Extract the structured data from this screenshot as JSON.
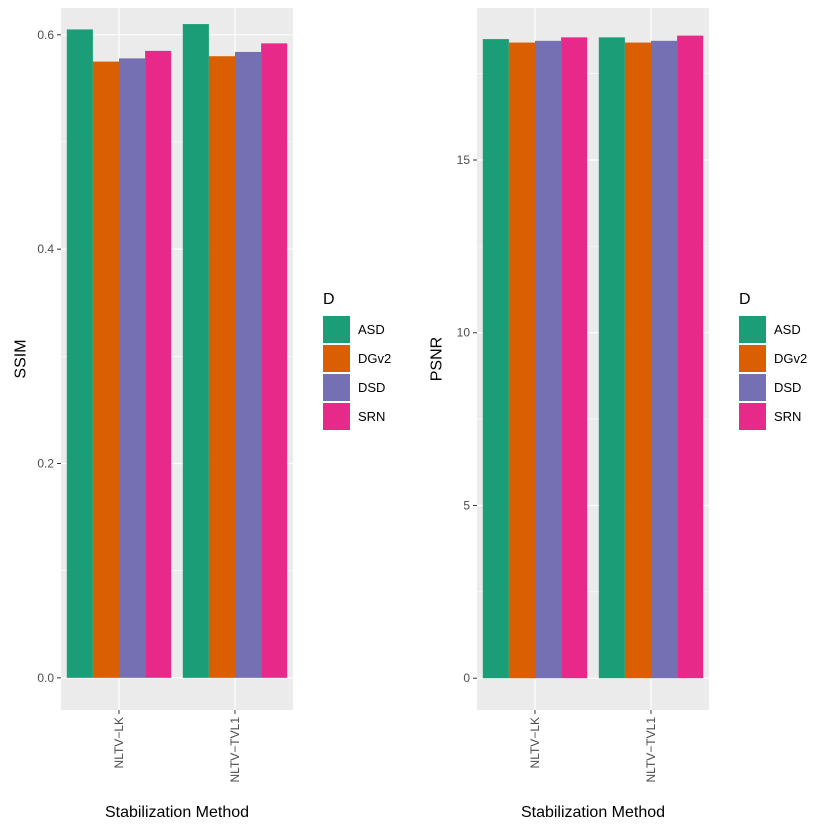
{
  "chart_data": [
    {
      "type": "bar",
      "xlabel": "Stabilization Method",
      "ylabel": "SSIM",
      "categories": [
        "NLTV−LK",
        "NLTV−TVL1"
      ],
      "ylim": [
        -0.03,
        0.625
      ],
      "yticks": [
        0.0,
        0.2,
        0.4,
        0.6
      ],
      "ytick_labels": [
        "0.0",
        "0.2",
        "0.4",
        "0.6"
      ],
      "series": [
        {
          "name": "ASD",
          "values": [
            0.605,
            0.61
          ]
        },
        {
          "name": "DGv2",
          "values": [
            0.575,
            0.58
          ]
        },
        {
          "name": "DSD",
          "values": [
            0.578,
            0.584
          ]
        },
        {
          "name": "SRN",
          "values": [
            0.585,
            0.592
          ]
        }
      ],
      "legend": {
        "title": "D",
        "position": "right"
      },
      "grid": true
    },
    {
      "type": "bar",
      "xlabel": "Stabilization Method",
      "ylabel": "PSNR",
      "categories": [
        "NLTV−LK",
        "NLTV−TVL1"
      ],
      "ylim": [
        -0.92,
        19.4
      ],
      "yticks": [
        0,
        5,
        10,
        15
      ],
      "ytick_labels": [
        "0",
        "5",
        "10",
        "15"
      ],
      "series": [
        {
          "name": "ASD",
          "values": [
            18.5,
            18.55
          ]
        },
        {
          "name": "DGv2",
          "values": [
            18.4,
            18.4
          ]
        },
        {
          "name": "DSD",
          "values": [
            18.45,
            18.45
          ]
        },
        {
          "name": "SRN",
          "values": [
            18.55,
            18.6
          ]
        }
      ],
      "legend": {
        "title": "D",
        "position": "right"
      },
      "grid": true
    }
  ],
  "colors": {
    "ASD": "#1b9e77",
    "DGv2": "#d95f02",
    "DSD": "#7570b3",
    "SRN": "#e7298a",
    "panel_bg": "#ebebeb",
    "grid": "#ffffff",
    "tick_text": "#4d4d4d",
    "tick_mark": "#333333"
  }
}
